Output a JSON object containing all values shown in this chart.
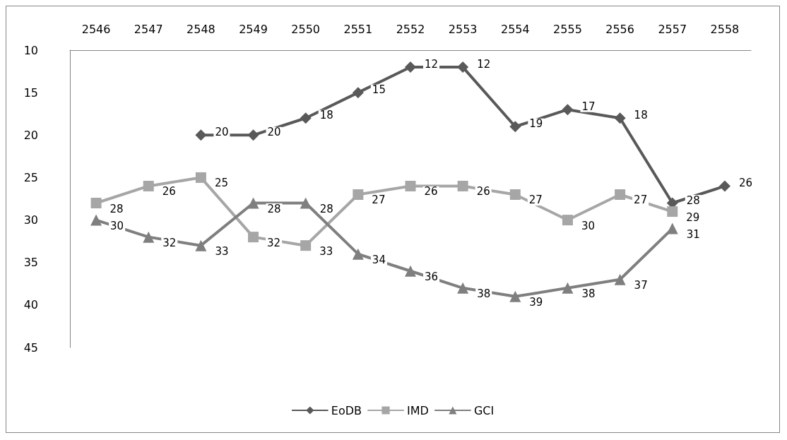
{
  "chart_data": {
    "type": "line",
    "categories": [
      "2546",
      "2547",
      "2548",
      "2549",
      "2550",
      "2551",
      "2552",
      "2553",
      "2554",
      "2555",
      "2556",
      "2557",
      "2558"
    ],
    "series": [
      {
        "name": "EoDB",
        "color": "#595959",
        "marker": "diamond",
        "values": [
          null,
          null,
          20,
          20,
          18,
          15,
          12,
          12,
          19,
          17,
          18,
          28,
          26
        ]
      },
      {
        "name": "IMD",
        "color": "#a6a6a6",
        "marker": "square",
        "values": [
          28,
          26,
          25,
          32,
          33,
          27,
          26,
          26,
          27,
          30,
          27,
          29,
          null
        ]
      },
      {
        "name": "GCI",
        "color": "#7f7f7f",
        "marker": "triangle",
        "values": [
          30,
          32,
          33,
          28,
          28,
          34,
          36,
          38,
          39,
          38,
          37,
          31,
          null
        ]
      }
    ],
    "ylim": [
      45,
      10
    ],
    "yticks": [
      10,
      15,
      20,
      25,
      30,
      35,
      40,
      45
    ],
    "data_labels": true,
    "grid": false,
    "legend": "bottom",
    "line_style": "solid"
  }
}
